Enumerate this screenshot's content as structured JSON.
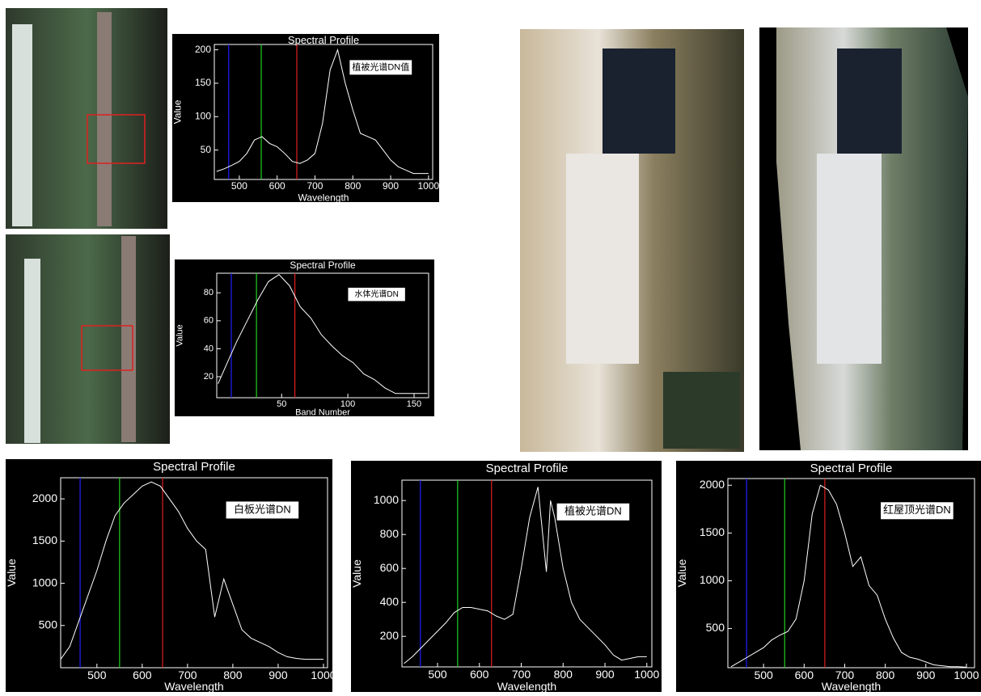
{
  "chart_data": [
    {
      "type": "line",
      "title": "Spectral Profile",
      "x_label": "Wavelength",
      "y_label": "Value",
      "annotation": "植被光谱DN值",
      "xlim": [
        434,
        1011
      ],
      "ylim": [
        6,
        208
      ],
      "xticks": [
        500,
        600,
        700,
        800,
        900,
        1000
      ],
      "yticks": [
        50,
        100,
        150,
        200
      ],
      "markers": [
        {
          "x": 472,
          "color": "#2020ff"
        },
        {
          "x": 558,
          "color": "#20d020"
        },
        {
          "x": 652,
          "color": "#e02020"
        }
      ],
      "x": [
        440,
        460,
        480,
        500,
        520,
        540,
        560,
        580,
        600,
        620,
        640,
        660,
        680,
        700,
        720,
        740,
        760,
        780,
        800,
        820,
        840,
        860,
        880,
        900,
        920,
        940,
        960,
        980,
        1000
      ],
      "series": [
        {
          "color": "#ffffff",
          "values": [
            18,
            22,
            27,
            33,
            45,
            65,
            70,
            60,
            55,
            45,
            33,
            30,
            35,
            45,
            90,
            170,
            200,
            150,
            110,
            75,
            70,
            65,
            50,
            35,
            25,
            20,
            15,
            15,
            15
          ]
        }
      ]
    },
    {
      "type": "line",
      "title": "Spectral Profile",
      "x_label": "Band Number",
      "y_label": "Value",
      "annotation": "水体光谱DN",
      "xlim": [
        1,
        161
      ],
      "ylim": [
        5,
        94
      ],
      "xticks": [
        50,
        100,
        150
      ],
      "yticks": [
        20,
        40,
        60,
        80
      ],
      "markers": [
        {
          "x": 12,
          "color": "#2020ff"
        },
        {
          "x": 31,
          "color": "#20d020"
        },
        {
          "x": 60,
          "color": "#e02020"
        }
      ],
      "x": [
        2,
        8,
        16,
        24,
        32,
        40,
        48,
        56,
        64,
        72,
        80,
        88,
        96,
        104,
        112,
        120,
        128,
        136,
        144,
        152,
        160
      ],
      "series": [
        {
          "color": "#ffffff",
          "values": [
            15,
            28,
            45,
            60,
            75,
            88,
            93,
            85,
            70,
            62,
            50,
            42,
            35,
            30,
            22,
            18,
            12,
            8,
            8,
            8,
            8
          ]
        }
      ]
    },
    {
      "type": "line",
      "title": "Spectral Profile",
      "x_label": "Wavelength",
      "y_label": "Value",
      "annotation": "白板光谱DN",
      "xlim": [
        420,
        1009
      ],
      "ylim": [
        0,
        2250
      ],
      "xticks": [
        500,
        600,
        700,
        800,
        900,
        1000
      ],
      "yticks": [
        500,
        1000,
        1500,
        2000
      ],
      "markers": [
        {
          "x": 463,
          "color": "#2020ff"
        },
        {
          "x": 550,
          "color": "#20d020"
        },
        {
          "x": 645,
          "color": "#e02020"
        }
      ],
      "x": [
        420,
        440,
        460,
        480,
        500,
        520,
        540,
        560,
        580,
        600,
        620,
        640,
        660,
        680,
        700,
        720,
        740,
        760,
        780,
        800,
        820,
        840,
        860,
        880,
        900,
        920,
        940,
        960,
        980,
        1000
      ],
      "series": [
        {
          "color": "#ffffff",
          "values": [
            100,
            250,
            550,
            850,
            1150,
            1500,
            1800,
            1950,
            2050,
            2150,
            2200,
            2150,
            2000,
            1850,
            1650,
            1500,
            1400,
            600,
            1050,
            750,
            450,
            350,
            300,
            250,
            180,
            130,
            110,
            100,
            100,
            100
          ]
        }
      ]
    },
    {
      "type": "line",
      "title": "Spectral Profile",
      "x_label": "Wavelength",
      "y_label": "Value",
      "annotation": "植被光谱DN",
      "xlim": [
        415,
        1012
      ],
      "ylim": [
        20,
        1120
      ],
      "xticks": [
        500,
        600,
        700,
        800,
        900,
        1000
      ],
      "yticks": [
        200,
        400,
        600,
        800,
        1000
      ],
      "markers": [
        {
          "x": 459,
          "color": "#2020ff"
        },
        {
          "x": 548,
          "color": "#20d020"
        },
        {
          "x": 629,
          "color": "#e02020"
        }
      ],
      "x": [
        420,
        440,
        460,
        480,
        500,
        520,
        540,
        560,
        580,
        600,
        620,
        640,
        660,
        680,
        700,
        720,
        740,
        760,
        770,
        780,
        800,
        820,
        840,
        860,
        880,
        900,
        920,
        940,
        960,
        980,
        1000
      ],
      "series": [
        {
          "color": "#ffffff",
          "values": [
            40,
            80,
            130,
            180,
            230,
            280,
            340,
            370,
            370,
            360,
            350,
            320,
            300,
            330,
            600,
            900,
            1080,
            580,
            1000,
            900,
            600,
            400,
            300,
            250,
            200,
            150,
            90,
            60,
            70,
            80,
            80
          ]
        }
      ]
    },
    {
      "type": "line",
      "title": "Spectral Profile",
      "x_label": "Wavelength",
      "y_label": "Value",
      "annotation": "红屋顶光谱DN",
      "xlim": [
        412,
        1020
      ],
      "ylim": [
        90,
        2070
      ],
      "xticks": [
        500,
        600,
        700,
        800,
        900,
        1000
      ],
      "yticks": [
        500,
        1000,
        1500,
        2000
      ],
      "markers": [
        {
          "x": 458,
          "color": "#2020ff"
        },
        {
          "x": 552,
          "color": "#20d020"
        },
        {
          "x": 651,
          "color": "#e02020"
        }
      ],
      "x": [
        420,
        440,
        460,
        480,
        500,
        520,
        540,
        560,
        580,
        600,
        620,
        640,
        660,
        680,
        700,
        720,
        740,
        760,
        780,
        800,
        820,
        840,
        860,
        880,
        900,
        920,
        940,
        960,
        980,
        1000
      ],
      "series": [
        {
          "color": "#ffffff",
          "values": [
            100,
            150,
            200,
            250,
            300,
            380,
            430,
            470,
            600,
            1000,
            1700,
            2000,
            1950,
            1800,
            1500,
            1150,
            1250,
            950,
            850,
            600,
            400,
            250,
            200,
            180,
            150,
            120,
            110,
            100,
            100,
            95
          ]
        }
      ]
    }
  ]
}
